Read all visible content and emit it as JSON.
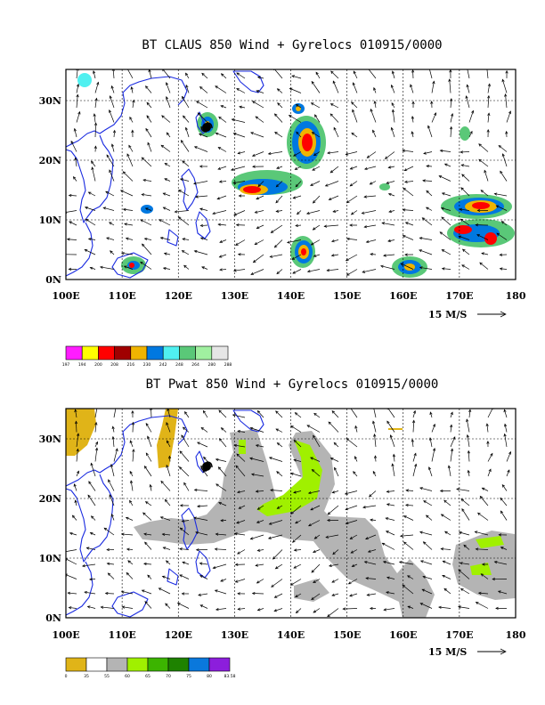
{
  "panels": [
    {
      "id": "top",
      "title": "BT CLAUS 850 Wind + Gyrelocs 010915/0000",
      "lon_labels": [
        "100E",
        "110E",
        "120E",
        "130E",
        "140E",
        "150E",
        "160E",
        "170E",
        "180"
      ],
      "lat_labels": [
        "0N",
        "10N",
        "20N",
        "30N"
      ],
      "ref_vector": "15 M/S",
      "legend": {
        "colors": [
          "#ff1cff",
          "#ffff00",
          "#ff0000",
          "#a00000",
          "#f0b400",
          "#0078e0",
          "#50f0f0",
          "#5ac878",
          "#a0f0a0",
          "#e6e6e6"
        ],
        "labels": [
          "197",
          "194",
          "200",
          "208",
          "216",
          "230",
          "242",
          "248",
          "264",
          "280",
          "288"
        ]
      }
    },
    {
      "id": "bottom",
      "title": "BT Pwat 850 Wind + Gyrelocs 010915/0000",
      "lon_labels": [
        "100E",
        "110E",
        "120E",
        "130E",
        "140E",
        "150E",
        "160E",
        "170E",
        "180"
      ],
      "lat_labels": [
        "0N",
        "10N",
        "20N",
        "30N"
      ],
      "ref_vector": "15 M/S",
      "legend": {
        "colors": [
          "#e0b418",
          "#ffffff",
          "#b4b4b4",
          "#a0f000",
          "#3cb400",
          "#1e8200",
          "#0a78dc",
          "#8c1edc"
        ],
        "labels": [
          "0",
          "35",
          "55",
          "60",
          "65",
          "70",
          "75",
          "80",
          "83.58"
        ]
      }
    }
  ]
}
